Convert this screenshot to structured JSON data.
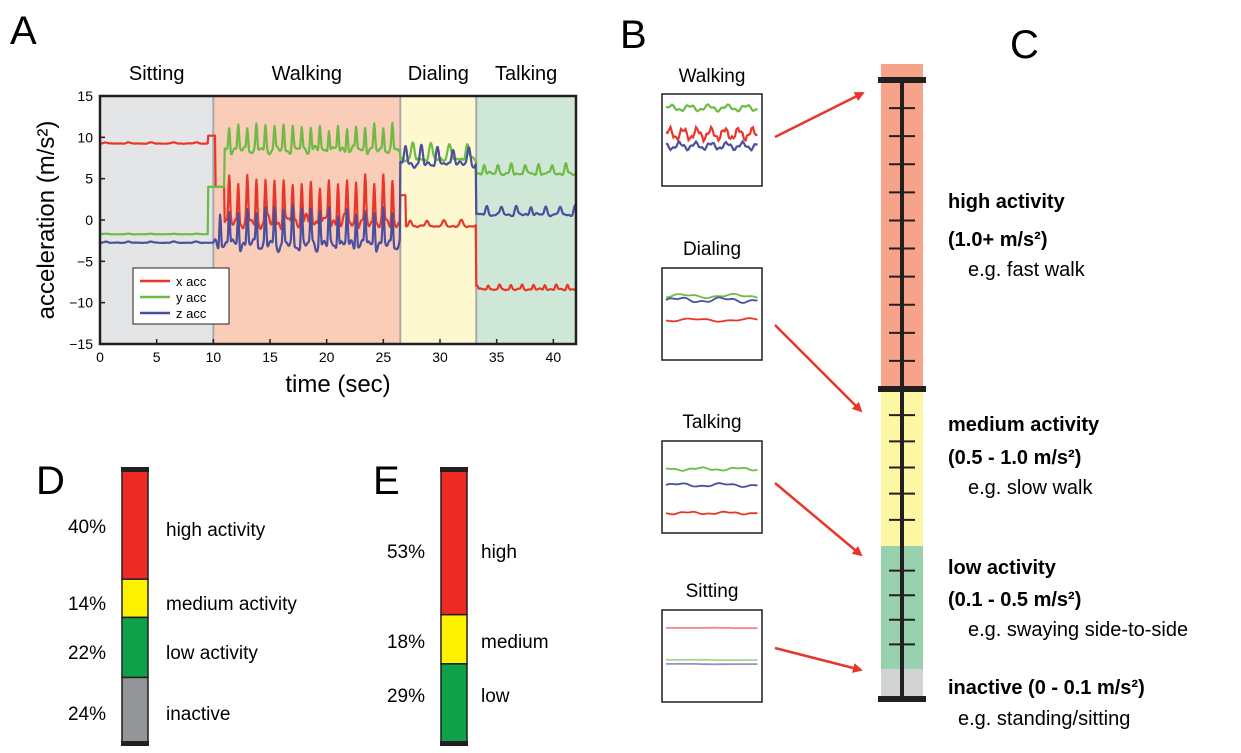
{
  "colors": {
    "x": "#e8372a",
    "y": "#6cbb45",
    "z": "#4a4fa0",
    "sitting_bg": "#e3e5e7",
    "walking_bg": "#f9cdb8",
    "dialing_bg": "#fdf8cf",
    "talking_bg": "#cfe7d6",
    "high": "#ee2a24",
    "medium": "#fff200",
    "low": "#0fa14a",
    "inactive": "#939598",
    "scale_high": "#f6a389",
    "scale_medium": "#fdf6a3",
    "scale_low": "#98d1ad",
    "scale_inactive": "#d1d3d4"
  },
  "panels": {
    "A": "A",
    "B": "B",
    "C": "C",
    "D": "D",
    "E": "E"
  },
  "chart_data": [
    {
      "type": "line",
      "panel": "A",
      "xlabel": "time (sec)",
      "ylabel": "acceleration (m/s²)",
      "xlim": [
        0,
        42
      ],
      "ylim": [
        -15,
        15
      ],
      "xticks": [
        0,
        5,
        10,
        15,
        20,
        25,
        30,
        35,
        40
      ],
      "yticks": [
        -15,
        -10,
        -5,
        0,
        5,
        10,
        15
      ],
      "legend_position": "bottom-left",
      "regions": [
        {
          "label": "Sitting",
          "start": 0,
          "end": 10,
          "color_key": "sitting_bg"
        },
        {
          "label": "Walking",
          "start": 10,
          "end": 26.5,
          "color_key": "walking_bg"
        },
        {
          "label": "Dialing",
          "start": 26.5,
          "end": 33.2,
          "color_key": "dialing_bg"
        },
        {
          "label": "Talking",
          "start": 33.2,
          "end": 42,
          "color_key": "talking_bg"
        }
      ],
      "series": [
        {
          "name": "x acc",
          "color_key": "x",
          "segments": [
            {
              "start": 0,
              "end": 9.5,
              "level": 9.3,
              "amp": 0.1,
              "period": 2
            },
            {
              "start": 9.5,
              "end": 10.2,
              "level": 10.2,
              "amp": 0,
              "period": 2
            },
            {
              "start": 10.2,
              "end": 11,
              "level": 4,
              "amp": 0,
              "period": 2
            },
            {
              "start": 11,
              "end": 26.5,
              "level": 1.5,
              "amp": 3.5,
              "period": 0.8
            },
            {
              "start": 26.5,
              "end": 27,
              "level": 3,
              "amp": 0,
              "period": 2
            },
            {
              "start": 27,
              "end": 33.2,
              "level": -0.5,
              "amp": 0.5,
              "period": 1.5
            },
            {
              "start": 33.2,
              "end": 42,
              "level": -8.2,
              "amp": 0.4,
              "period": 1
            }
          ]
        },
        {
          "name": "y acc",
          "color_key": "y",
          "segments": [
            {
              "start": 0,
              "end": 9.5,
              "level": -1.7,
              "amp": 0.05,
              "period": 2
            },
            {
              "start": 9.5,
              "end": 11,
              "level": 4,
              "amp": 0,
              "period": 2
            },
            {
              "start": 11,
              "end": 26.5,
              "level": 9.5,
              "amp": 2,
              "period": 0.8
            },
            {
              "start": 26.5,
              "end": 33.2,
              "level": 8,
              "amp": 1.2,
              "period": 1.6
            },
            {
              "start": 33.2,
              "end": 42,
              "level": 6,
              "amp": 0.8,
              "period": 1.2
            }
          ]
        },
        {
          "name": "z acc",
          "color_key": "z",
          "segments": [
            {
              "start": 0,
              "end": 10,
              "level": -2.7,
              "amp": 0.1,
              "period": 2
            },
            {
              "start": 10,
              "end": 26.5,
              "level": -1.5,
              "amp": 3,
              "period": 0.8
            },
            {
              "start": 26.5,
              "end": 33.2,
              "level": 7.5,
              "amp": 1.5,
              "period": 1.4
            },
            {
              "start": 33.2,
              "end": 42,
              "level": 1,
              "amp": 0.7,
              "period": 1.3
            }
          ]
        }
      ]
    },
    {
      "type": "bar",
      "panel": "D",
      "orientation": "stacked-vertical",
      "segments": [
        {
          "percent_label": "40%",
          "value": 40,
          "label": "high activity",
          "color_key": "high"
        },
        {
          "percent_label": "14%",
          "value": 14,
          "label": "medium activity",
          "color_key": "medium"
        },
        {
          "percent_label": "22%",
          "value": 22,
          "label": "low activity",
          "color_key": "low"
        },
        {
          "percent_label": "24%",
          "value": 24,
          "label": "inactive",
          "color_key": "inactive"
        }
      ]
    },
    {
      "type": "bar",
      "panel": "E",
      "orientation": "stacked-vertical",
      "segments": [
        {
          "percent_label": "53%",
          "value": 53,
          "label": "high",
          "color_key": "high"
        },
        {
          "percent_label": "18%",
          "value": 18,
          "label": "medium",
          "color_key": "medium"
        },
        {
          "percent_label": "29%",
          "value": 29,
          "label": "low",
          "color_key": "low"
        }
      ]
    }
  ],
  "thumbnails": [
    {
      "label": "Walking",
      "pattern": "walking"
    },
    {
      "label": "Dialing",
      "pattern": "dialing"
    },
    {
      "label": "Talking",
      "pattern": "talking"
    },
    {
      "label": "Sitting",
      "pattern": "sitting"
    }
  ],
  "scale": {
    "levels": [
      {
        "title": "high activity",
        "range": "(1.0+ m/s²)",
        "example": "e.g. fast walk",
        "color_key": "scale_high",
        "ticks": 10
      },
      {
        "title": "medium activity",
        "range": "(0.5 - 1.0 m/s²)",
        "example": "e.g. slow walk",
        "color_key": "scale_medium",
        "ticks": 5
      },
      {
        "title": "low activity",
        "range": "(0.1 - 0.5 m/s²)",
        "example": "e.g. swaying side-to-side",
        "color_key": "scale_low",
        "ticks": 4
      },
      {
        "title": "inactive (0 - 0.1 m/s²)",
        "range": "",
        "example": "e.g. standing/sitting",
        "color_key": "scale_inactive",
        "ticks": 0
      }
    ]
  }
}
